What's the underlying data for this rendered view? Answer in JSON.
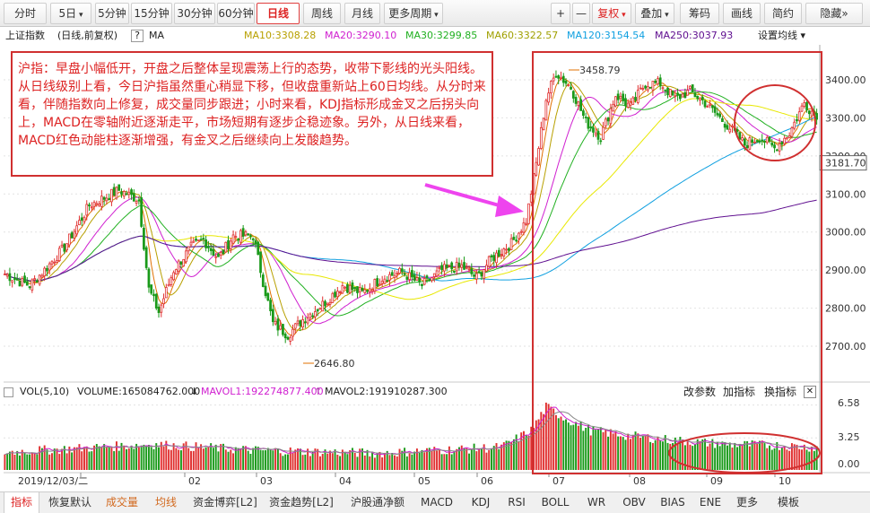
{
  "toolbar": {
    "buttons": [
      {
        "label": "分时",
        "icon": ""
      },
      {
        "label": "5日",
        "icon": "dropdown-arrow-icon"
      },
      {
        "label": "5分钟",
        "icon": ""
      },
      {
        "label": "15分钟",
        "icon": ""
      },
      {
        "label": "30分钟",
        "icon": ""
      },
      {
        "label": "60分钟",
        "icon": ""
      },
      {
        "label": "日线",
        "icon": "",
        "active": true
      },
      {
        "label": "周线",
        "icon": ""
      },
      {
        "label": "月线",
        "icon": ""
      },
      {
        "label": "更多周期",
        "icon": "dropdown-arrow-icon"
      },
      {
        "label": "+",
        "icon": "zoom-in-icon"
      },
      {
        "label": "—",
        "icon": "zoom-out-icon"
      },
      {
        "label": "复权",
        "icon": "dropdown-arrow-icon",
        "red": true
      },
      {
        "label": "叠加",
        "icon": "dropdown-arrow-icon"
      },
      {
        "label": "筹码",
        "icon": ""
      },
      {
        "label": "画线",
        "icon": ""
      },
      {
        "label": "简约",
        "icon": ""
      },
      {
        "label": "隐藏",
        "icon": "double-right-arrow-icon"
      }
    ]
  },
  "info": {
    "title": "上证指数",
    "mode": "(日线,前复权)",
    "help": "?",
    "indicator": "MA",
    "ma10": "MA10:3308.28",
    "ma20": "MA20:3290.10",
    "ma30": "MA30:3299.85",
    "ma60": "MA60:3322.57",
    "ma120": "MA120:3154.54",
    "ma250": "MA250:3037.93",
    "settings": "设置均线"
  },
  "colors": {
    "up": "#e03030",
    "down": "#1a9a1a",
    "ma5": "#e07000",
    "ma10": "#b8a000",
    "ma20": "#d020d0",
    "ma30": "#20b020",
    "ma60": "#e8e800",
    "ma120": "#10a0e0",
    "ma250": "#601090",
    "annot": "#d03030",
    "arrow": "#ee44ee"
  },
  "annotation": {
    "text": "沪指：早盘小幅低开，开盘之后整体呈现震荡上行的态势，收带下影线的光头阳线。从日线级别上看，今日沪指虽然重心稍显下移，但收盘重新站上60日均线。从分时来看，伴随指数向上修复，成交量同步跟进；小时来看，KDJ指标形成金叉之后拐头向上，MACD在零轴附近逐渐走平，市场短期有逐步企稳迹象。另外，从日线来看，MACD红色动能柱逐渐增强，有金叉之后继续向上发酸趋势。"
  },
  "volume": {
    "label": "VOL(5,10)",
    "value": "VOLUME:165084762.000",
    "mavol1": "MAVOL1:192274877.400",
    "mavol2": "MAVOL2:191910287.300",
    "actions": [
      "改参数",
      "加指标",
      "换指标"
    ]
  },
  "bottom_tabs": [
    {
      "label": "指标",
      "active": true
    },
    {
      "label": "恢复默认"
    },
    {
      "label": "成交量",
      "orange": true
    },
    {
      "label": "均线",
      "orange": true
    },
    {
      "label": "资金博弈[L2]"
    },
    {
      "label": "资金趋势[L2]"
    },
    {
      "label": "沪股通净额"
    },
    {
      "label": "MACD"
    },
    {
      "label": "KDJ"
    },
    {
      "label": "RSI"
    },
    {
      "label": "BOLL"
    },
    {
      "label": "WR"
    },
    {
      "label": "OBV"
    },
    {
      "label": "BIAS"
    },
    {
      "label": "ENE"
    },
    {
      "label": "更多"
    },
    {
      "label": "模板"
    }
  ],
  "chart_data": {
    "type": "candlestick",
    "price_ticks": [
      2700,
      2800,
      2900,
      3000,
      3100,
      3200,
      3300,
      3400
    ],
    "price_current": "3181.70",
    "ylim": [
      2620,
      3480
    ],
    "vol_ticks": [
      "6.58",
      "3.25",
      "0.00"
    ],
    "vol_ylim": [
      0,
      7
    ],
    "x_labels": [
      "2019/12/03/二",
      "02",
      "03",
      "04",
      "05",
      "06",
      "07",
      "08",
      "09",
      "10"
    ],
    "max_label": "3458.79",
    "min_label": "2646.80",
    "anchors": [
      [
        0,
        2890
      ],
      [
        6,
        2870
      ],
      [
        10,
        2860
      ],
      [
        16,
        2900
      ],
      [
        24,
        2960
      ],
      [
        34,
        3070
      ],
      [
        46,
        3110
      ],
      [
        54,
        3085
      ],
      [
        58,
        2850
      ],
      [
        62,
        2790
      ],
      [
        68,
        2900
      ],
      [
        75,
        2960
      ],
      [
        80,
        2980
      ],
      [
        86,
        2930
      ],
      [
        92,
        2990
      ],
      [
        100,
        2990
      ],
      [
        104,
        2870
      ],
      [
        108,
        2760
      ],
      [
        114,
        2730
      ],
      [
        120,
        2770
      ],
      [
        128,
        2810
      ],
      [
        136,
        2860
      ],
      [
        144,
        2840
      ],
      [
        152,
        2880
      ],
      [
        160,
        2895
      ],
      [
        168,
        2860
      ],
      [
        176,
        2900
      ],
      [
        184,
        2910
      ],
      [
        190,
        2880
      ],
      [
        196,
        2930
      ],
      [
        204,
        2970
      ],
      [
        210,
        3030
      ],
      [
        214,
        3180
      ],
      [
        218,
        3350
      ],
      [
        222,
        3420
      ],
      [
        228,
        3380
      ],
      [
        234,
        3290
      ],
      [
        240,
        3250
      ],
      [
        246,
        3360
      ],
      [
        252,
        3330
      ],
      [
        258,
        3390
      ],
      [
        264,
        3390
      ],
      [
        270,
        3350
      ],
      [
        276,
        3370
      ],
      [
        282,
        3340
      ],
      [
        288,
        3300
      ],
      [
        294,
        3260
      ],
      [
        298,
        3230
      ],
      [
        304,
        3250
      ],
      [
        310,
        3220
      ],
      [
        316,
        3260
      ],
      [
        322,
        3340
      ],
      [
        326,
        3310
      ]
    ],
    "n": 328,
    "vol_segments": [
      [
        0,
        1.8
      ],
      [
        30,
        2.2
      ],
      [
        60,
        2.6
      ],
      [
        100,
        2.0
      ],
      [
        150,
        1.7
      ],
      [
        200,
        2.3
      ],
      [
        212,
        4.0
      ],
      [
        218,
        6.4
      ],
      [
        226,
        5.2
      ],
      [
        236,
        4.0
      ],
      [
        250,
        3.5
      ],
      [
        270,
        3.0
      ],
      [
        290,
        2.6
      ],
      [
        310,
        2.5
      ],
      [
        326,
        2.3
      ]
    ]
  }
}
